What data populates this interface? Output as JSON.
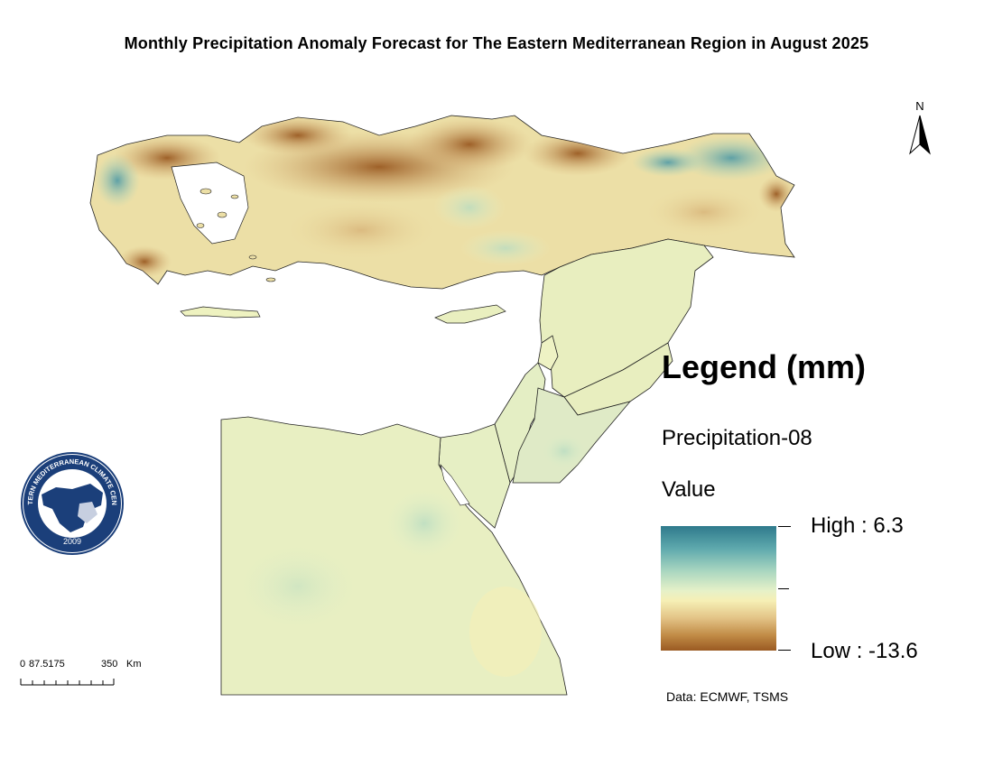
{
  "title": "Monthly Precipitation Anomaly Forecast for The Eastern Mediterranean Region in August 2025",
  "legend": {
    "heading": "Legend (mm)",
    "layer_name": "Precipitation-08",
    "field_label": "Value",
    "high_label": "High : 6.3",
    "low_label": "Low : -13.6",
    "high_value": 6.3,
    "low_value": -13.6,
    "ramp_colors": [
      "#2f7a8c",
      "#a9d6c0",
      "#f6efb5",
      "#c08a45",
      "#9a5a22"
    ]
  },
  "north_arrow": {
    "label": "N"
  },
  "scale_bar": {
    "labels": [
      "0",
      "87.5175",
      "350",
      "Km"
    ]
  },
  "source": "Data: ECMWF, TSMS",
  "logo": {
    "ring_text": "EASTERN MEDITERRANEAN CLIMATE CENTRE",
    "year": "2009"
  }
}
